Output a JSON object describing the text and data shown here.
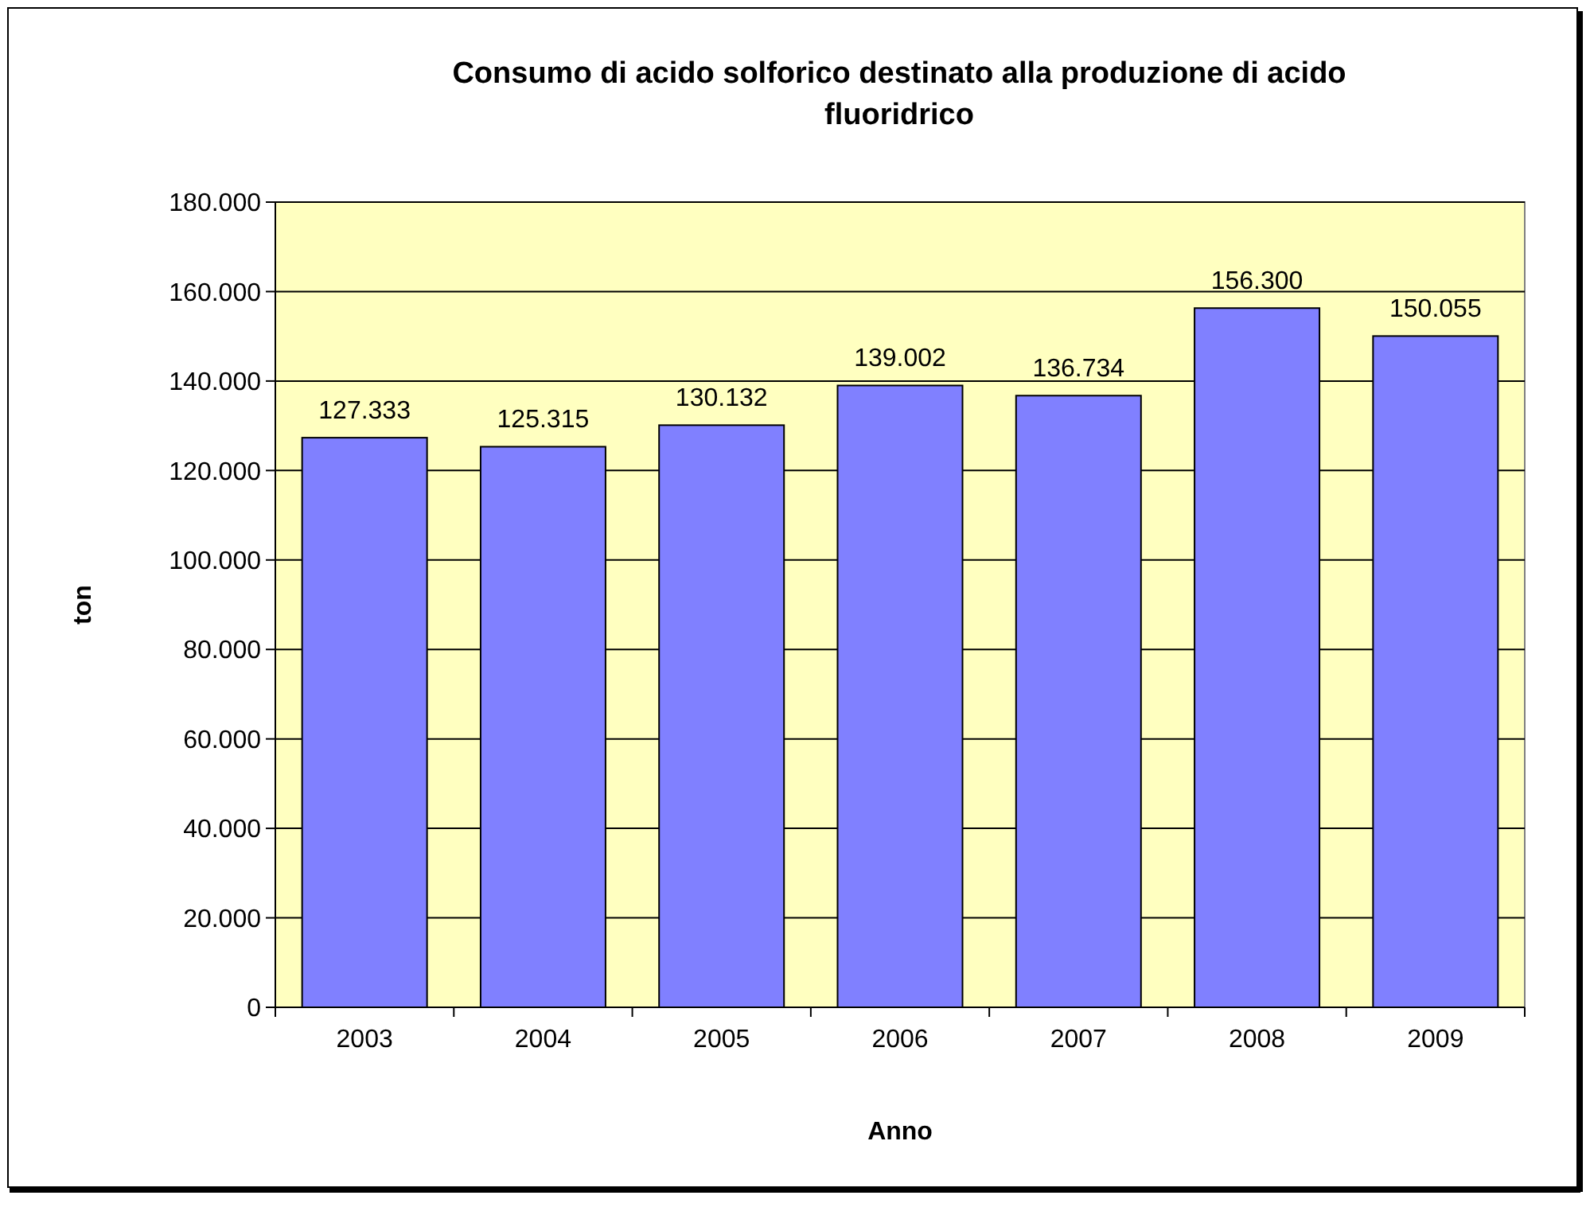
{
  "chart_data": {
    "type": "bar",
    "title": "Consumo di acido solforico destinato alla produzione di acido fluoridrico",
    "xlabel": "Anno",
    "ylabel": "ton",
    "categories": [
      "2003",
      "2004",
      "2005",
      "2006",
      "2007",
      "2008",
      "2009"
    ],
    "values": [
      127333,
      125315,
      130132,
      139002,
      136734,
      156300,
      150055
    ],
    "value_labels": [
      "127.333",
      "125.315",
      "130.132",
      "139.002",
      "136.734",
      "156.300",
      "150.055"
    ],
    "color": "#8080ff",
    "ylim": [
      0,
      180000
    ],
    "yticks": [
      0,
      {
        "value": 20000,
        "label": "20.000"
      },
      {
        "value": 40000,
        "label": "40.000"
      },
      {
        "value": 60000,
        "label": "60.000"
      },
      {
        "value": 80000,
        "label": "80.000"
      },
      {
        "value": 100000,
        "label": "100.000"
      },
      {
        "value": 120000,
        "label": "120.000"
      },
      {
        "value": 140000,
        "label": "140.000"
      },
      {
        "value": 160000,
        "label": "160.000"
      },
      {
        "value": 180000,
        "label": "180.000"
      }
    ],
    "grid": "y"
  }
}
